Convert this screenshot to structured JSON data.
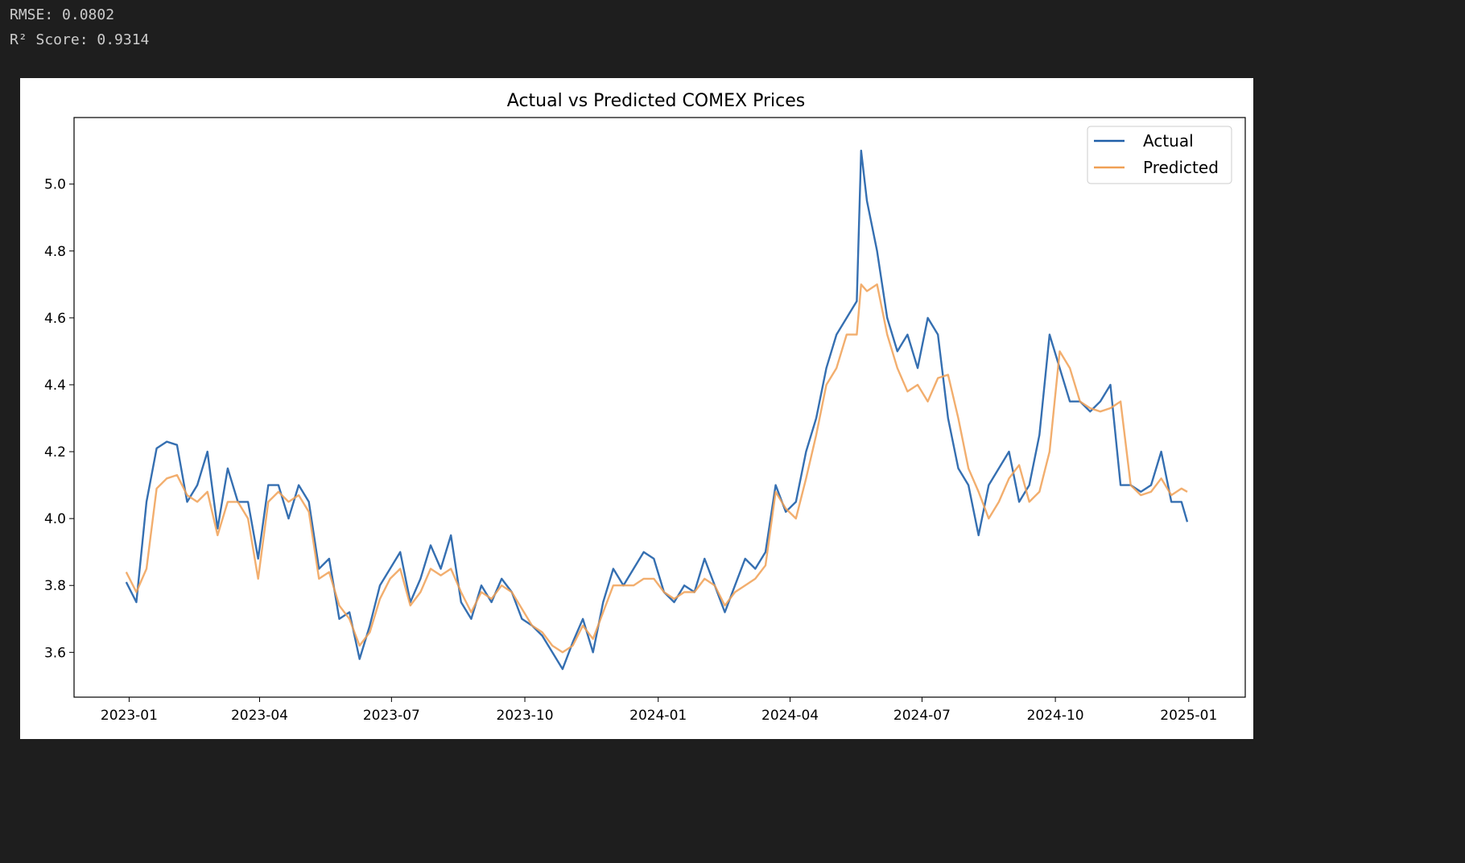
{
  "output": {
    "rmse_line": "RMSE: 0.0802",
    "r2_line": "R² Score: 0.9314"
  },
  "chart_data": {
    "type": "line",
    "title": "Actual vs Predicted COMEX Prices",
    "xlabel": "",
    "ylabel": "",
    "ylim": [
      3.466,
      5.199
    ],
    "xlim": [
      "2022-11-24",
      "2025-02-09"
    ],
    "grid": false,
    "legend_position": "top-right",
    "yticks": [
      "3.6",
      "3.8",
      "4.0",
      "4.2",
      "4.4",
      "4.6",
      "4.8",
      "5.0"
    ],
    "xticks": [
      "2023-01",
      "2023-04",
      "2023-07",
      "2023-10",
      "2024-01",
      "2024-04",
      "2024-07",
      "2024-10",
      "2025-01"
    ],
    "x": [
      "2022-12-30",
      "2023-01-06",
      "2023-01-13",
      "2023-01-20",
      "2023-01-27",
      "2023-02-03",
      "2023-02-10",
      "2023-02-17",
      "2023-02-24",
      "2023-03-03",
      "2023-03-10",
      "2023-03-17",
      "2023-03-24",
      "2023-03-31",
      "2023-04-07",
      "2023-04-14",
      "2023-04-21",
      "2023-04-28",
      "2023-05-05",
      "2023-05-12",
      "2023-05-19",
      "2023-05-26",
      "2023-06-02",
      "2023-06-09",
      "2023-06-16",
      "2023-06-23",
      "2023-06-30",
      "2023-07-07",
      "2023-07-14",
      "2023-07-21",
      "2023-07-28",
      "2023-08-04",
      "2023-08-11",
      "2023-08-18",
      "2023-08-25",
      "2023-09-01",
      "2023-09-08",
      "2023-09-15",
      "2023-09-22",
      "2023-09-29",
      "2023-10-06",
      "2023-10-13",
      "2023-10-20",
      "2023-10-27",
      "2023-11-03",
      "2023-11-10",
      "2023-11-17",
      "2023-11-24",
      "2023-12-01",
      "2023-12-08",
      "2023-12-15",
      "2023-12-22",
      "2023-12-29",
      "2024-01-05",
      "2024-01-12",
      "2024-01-19",
      "2024-01-26",
      "2024-02-02",
      "2024-02-09",
      "2024-02-16",
      "2024-02-23",
      "2024-03-01",
      "2024-03-08",
      "2024-03-15",
      "2024-03-22",
      "2024-03-29",
      "2024-04-05",
      "2024-04-12",
      "2024-04-19",
      "2024-04-26",
      "2024-05-03",
      "2024-05-10",
      "2024-05-17",
      "2024-05-20",
      "2024-05-24",
      "2024-05-31",
      "2024-06-07",
      "2024-06-14",
      "2024-06-21",
      "2024-06-28",
      "2024-07-05",
      "2024-07-12",
      "2024-07-19",
      "2024-07-26",
      "2024-08-02",
      "2024-08-09",
      "2024-08-16",
      "2024-08-23",
      "2024-08-30",
      "2024-09-06",
      "2024-09-13",
      "2024-09-20",
      "2024-09-27",
      "2024-10-04",
      "2024-10-11",
      "2024-10-18",
      "2024-10-25",
      "2024-11-01",
      "2024-11-08",
      "2024-11-15",
      "2024-11-22",
      "2024-11-29",
      "2024-12-06",
      "2024-12-13",
      "2024-12-20",
      "2024-12-27",
      "2024-12-31"
    ],
    "series": [
      {
        "name": "Actual",
        "color": "#1f5fa8",
        "values": [
          3.81,
          3.75,
          4.05,
          4.21,
          4.23,
          4.22,
          4.05,
          4.1,
          4.2,
          3.97,
          4.15,
          4.05,
          4.05,
          3.88,
          4.1,
          4.1,
          4.0,
          4.1,
          4.05,
          3.85,
          3.88,
          3.7,
          3.72,
          3.58,
          3.68,
          3.8,
          3.85,
          3.9,
          3.75,
          3.82,
          3.92,
          3.85,
          3.95,
          3.75,
          3.7,
          3.8,
          3.75,
          3.82,
          3.78,
          3.7,
          3.68,
          3.65,
          3.6,
          3.55,
          3.63,
          3.7,
          3.6,
          3.75,
          3.85,
          3.8,
          3.85,
          3.9,
          3.88,
          3.78,
          3.75,
          3.8,
          3.78,
          3.88,
          3.8,
          3.72,
          3.8,
          3.88,
          3.85,
          3.9,
          4.1,
          4.02,
          4.05,
          4.2,
          4.3,
          4.45,
          4.55,
          4.6,
          4.65,
          5.1,
          4.95,
          4.8,
          4.6,
          4.5,
          4.55,
          4.45,
          4.6,
          4.55,
          4.3,
          4.15,
          4.1,
          3.95,
          4.1,
          4.15,
          4.2,
          4.05,
          4.1,
          4.25,
          4.55,
          4.45,
          4.35,
          4.35,
          4.32,
          4.35,
          4.4,
          4.1,
          4.1,
          4.08,
          4.1,
          4.2,
          4.05,
          4.05,
          3.99
        ]
      },
      {
        "name": "Predicted",
        "color": "#f0a055",
        "values": [
          3.84,
          3.78,
          3.85,
          4.09,
          4.12,
          4.13,
          4.07,
          4.05,
          4.08,
          3.95,
          4.05,
          4.05,
          4.0,
          3.82,
          4.05,
          4.08,
          4.05,
          4.07,
          4.02,
          3.82,
          3.84,
          3.74,
          3.7,
          3.62,
          3.66,
          3.76,
          3.82,
          3.85,
          3.74,
          3.78,
          3.85,
          3.83,
          3.85,
          3.78,
          3.72,
          3.78,
          3.76,
          3.8,
          3.78,
          3.73,
          3.68,
          3.66,
          3.62,
          3.6,
          3.62,
          3.68,
          3.64,
          3.72,
          3.8,
          3.8,
          3.8,
          3.82,
          3.82,
          3.78,
          3.76,
          3.78,
          3.78,
          3.82,
          3.8,
          3.74,
          3.78,
          3.8,
          3.82,
          3.86,
          4.08,
          4.03,
          4.0,
          4.12,
          4.25,
          4.4,
          4.45,
          4.55,
          4.55,
          4.7,
          4.68,
          4.7,
          4.55,
          4.45,
          4.38,
          4.4,
          4.35,
          4.42,
          4.43,
          4.3,
          4.15,
          4.08,
          4.0,
          4.05,
          4.12,
          4.16,
          4.05,
          4.08,
          4.2,
          4.5,
          4.45,
          4.35,
          4.33,
          4.32,
          4.33,
          4.35,
          4.1,
          4.07,
          4.08,
          4.12,
          4.07,
          4.09,
          4.08
        ]
      }
    ]
  }
}
